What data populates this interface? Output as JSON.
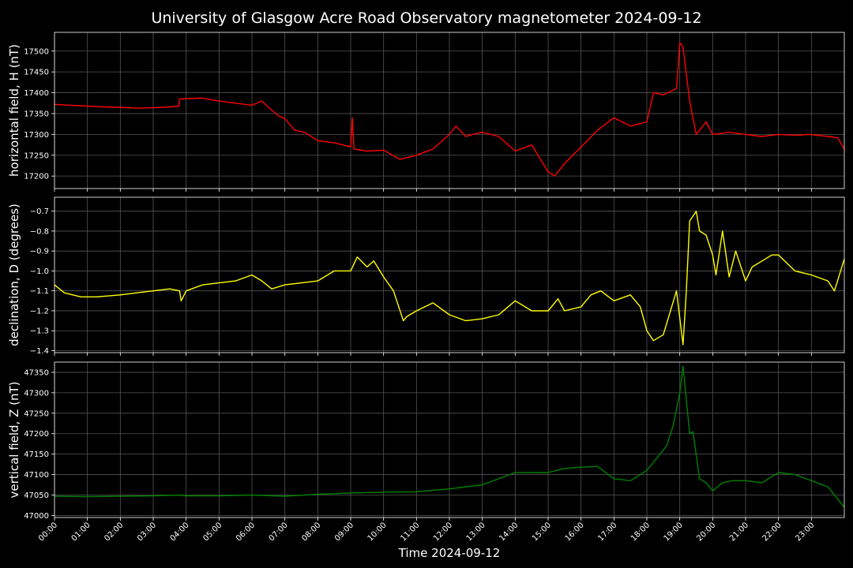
{
  "title": "University of Glasgow Acre Road Observatory magnetometer 2024-09-12",
  "xlabel": "Time 2024-09-12",
  "x_ticks": [
    "00:00",
    "01:00",
    "02:00",
    "03:00",
    "04:00",
    "05:00",
    "06:00",
    "07:00",
    "08:00",
    "09:00",
    "10:00",
    "11:00",
    "12:00",
    "13:00",
    "14:00",
    "15:00",
    "16:00",
    "17:00",
    "18:00",
    "19:00",
    "20:00",
    "21:00",
    "22:00",
    "23:00"
  ],
  "chart_data": [
    {
      "type": "line",
      "ylabel": "horizontal field, H (nT)",
      "color": "#ff0000",
      "ylim": [
        17170,
        17545
      ],
      "yticks": [
        17200,
        17250,
        17300,
        17350,
        17400,
        17450,
        17500
      ],
      "grid": true,
      "x_unit": "hours",
      "series": [
        {
          "x": [
            0,
            0.5,
            1,
            1.5,
            2,
            2.5,
            3,
            3.5,
            3.78,
            3.8,
            4,
            4.5,
            5,
            5.5,
            6,
            6.3,
            6.5,
            6.8,
            7,
            7.3,
            7.6,
            8,
            8.5,
            9,
            9.05,
            9.1,
            9.5,
            10,
            10.5,
            11,
            11.5,
            12,
            12.2,
            12.5,
            12.7,
            13,
            13.5,
            14,
            14.5,
            15,
            15.2,
            15.5,
            16,
            16.5,
            17,
            17.5,
            18,
            18.2,
            18.5,
            18.9,
            19,
            19.1,
            19.3,
            19.5,
            19.8,
            20,
            20.5,
            21,
            21.5,
            22,
            22.5,
            23,
            23.5,
            23.8,
            24
          ],
          "values": [
            17372,
            17370,
            17368,
            17366,
            17365,
            17363,
            17364,
            17366,
            17368,
            17385,
            17386,
            17387,
            17380,
            17375,
            17370,
            17380,
            17365,
            17345,
            17338,
            17310,
            17305,
            17285,
            17280,
            17270,
            17340,
            17265,
            17260,
            17262,
            17240,
            17250,
            17265,
            17300,
            17320,
            17295,
            17300,
            17305,
            17295,
            17260,
            17275,
            17210,
            17200,
            17230,
            17270,
            17310,
            17340,
            17320,
            17330,
            17400,
            17395,
            17410,
            17520,
            17510,
            17380,
            17300,
            17330,
            17300,
            17305,
            17300,
            17295,
            17300,
            17298,
            17300,
            17295,
            17292,
            17265
          ]
        }
      ]
    },
    {
      "type": "line",
      "ylabel": "declination, D (degrees)",
      "color": "#ffff00",
      "ylim": [
        -1.41,
        -0.63
      ],
      "yticks": [
        -1.4,
        -1.3,
        -1.2,
        -1.1,
        -1.0,
        -0.9,
        -0.8,
        -0.7
      ],
      "grid": true,
      "x_unit": "hours",
      "series": [
        {
          "x": [
            0,
            0.3,
            0.8,
            1.3,
            2,
            2.5,
            3,
            3.5,
            3.8,
            3.85,
            4,
            4.5,
            5,
            5.5,
            6,
            6.3,
            6.6,
            7,
            7.5,
            8,
            8.5,
            9,
            9.2,
            9.5,
            9.7,
            10,
            10.3,
            10.6,
            10.7,
            11,
            11.5,
            12,
            12.5,
            13,
            13.5,
            14,
            14.5,
            15,
            15.3,
            15.5,
            16,
            16.3,
            16.6,
            17,
            17.5,
            17.8,
            18,
            18.2,
            18.5,
            18.9,
            19.1,
            19.2,
            19.3,
            19.5,
            19.6,
            19.8,
            20,
            20.1,
            20.3,
            20.5,
            20.7,
            21,
            21.2,
            21.5,
            21.8,
            22,
            22.5,
            23,
            23.5,
            23.7,
            24
          ],
          "values": [
            -1.07,
            -1.11,
            -1.13,
            -1.13,
            -1.12,
            -1.11,
            -1.1,
            -1.09,
            -1.1,
            -1.15,
            -1.1,
            -1.07,
            -1.06,
            -1.05,
            -1.02,
            -1.05,
            -1.09,
            -1.07,
            -1.06,
            -1.05,
            -1.0,
            -1.0,
            -0.93,
            -0.98,
            -0.95,
            -1.03,
            -1.1,
            -1.25,
            -1.23,
            -1.2,
            -1.16,
            -1.22,
            -1.25,
            -1.24,
            -1.22,
            -1.15,
            -1.2,
            -1.2,
            -1.14,
            -1.2,
            -1.18,
            -1.12,
            -1.1,
            -1.15,
            -1.12,
            -1.18,
            -1.3,
            -1.35,
            -1.32,
            -1.1,
            -1.37,
            -1.1,
            -0.75,
            -0.7,
            -0.8,
            -0.82,
            -0.92,
            -1.02,
            -0.8,
            -1.03,
            -0.9,
            -1.05,
            -0.98,
            -0.95,
            -0.92,
            -0.92,
            -1.0,
            -1.02,
            -1.05,
            -1.1,
            -0.94
          ]
        }
      ]
    },
    {
      "type": "line",
      "ylabel": "vertical field, Z (nT)",
      "color": "#008000",
      "ylim": [
        46995,
        47375
      ],
      "yticks": [
        47000,
        47050,
        47100,
        47150,
        47200,
        47250,
        47300,
        47350
      ],
      "grid": true,
      "x_unit": "hours",
      "series": [
        {
          "x": [
            0,
            1,
            2,
            3,
            3.8,
            4,
            5,
            6,
            7,
            8,
            9,
            10,
            11,
            12,
            13,
            14,
            15,
            15.5,
            16,
            16.5,
            17,
            17.5,
            18,
            18.3,
            18.6,
            18.8,
            19,
            19.1,
            19.3,
            19.4,
            19.6,
            19.8,
            20,
            20.3,
            20.6,
            21,
            21.5,
            22,
            22.5,
            23,
            23.5,
            23.8,
            24
          ],
          "values": [
            47047,
            47046,
            47047,
            47048,
            47050,
            47048,
            47048,
            47050,
            47047,
            47052,
            47055,
            47057,
            47058,
            47065,
            47075,
            47105,
            47105,
            47115,
            47118,
            47120,
            47090,
            47085,
            47110,
            47140,
            47170,
            47220,
            47300,
            47365,
            47200,
            47205,
            47090,
            47080,
            47060,
            47080,
            47085,
            47085,
            47080,
            47105,
            47100,
            47085,
            47070,
            47040,
            47020
          ]
        }
      ]
    }
  ]
}
